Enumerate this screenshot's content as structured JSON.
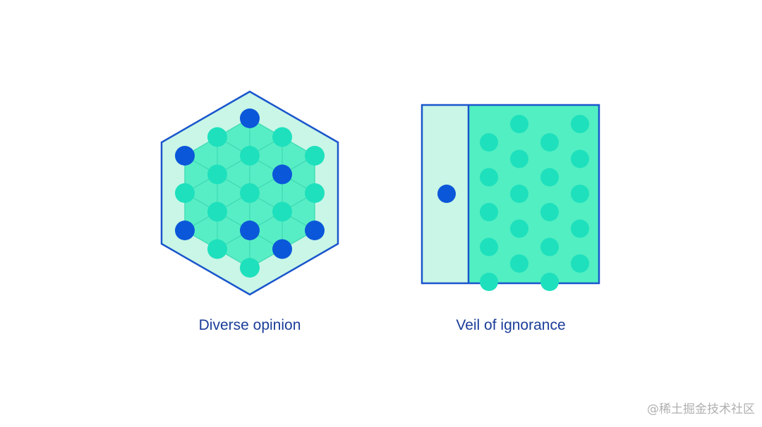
{
  "colors": {
    "outline": "#1a56cc",
    "hex_fill": "#c9f6e6",
    "hex_tri_fill": "#58eec5",
    "hex_tri_line": "#3fdcb6",
    "node_teal": "#1ee0bd",
    "node_blue": "#0b57d9",
    "panel_left_fill": "#c9f6e6",
    "panel_right_fill": "#52efc2",
    "caption_text": "#1a3d99",
    "watermark_text": "#b0b0b0"
  },
  "icons": {
    "diverse_opinion": "hexagon-lattice-icon",
    "veil_of_ignorance": "veil-panel-icon"
  },
  "diverse_opinion": {
    "caption": "Diverse opinion",
    "nodes": {
      "blue_count": 7,
      "teal_count": 12
    }
  },
  "veil_of_ignorance": {
    "caption": "Veil of ignorance",
    "nodes": {
      "hidden_count": 1,
      "visible_count": 20
    }
  },
  "watermark": "@稀土掘金技术社区"
}
